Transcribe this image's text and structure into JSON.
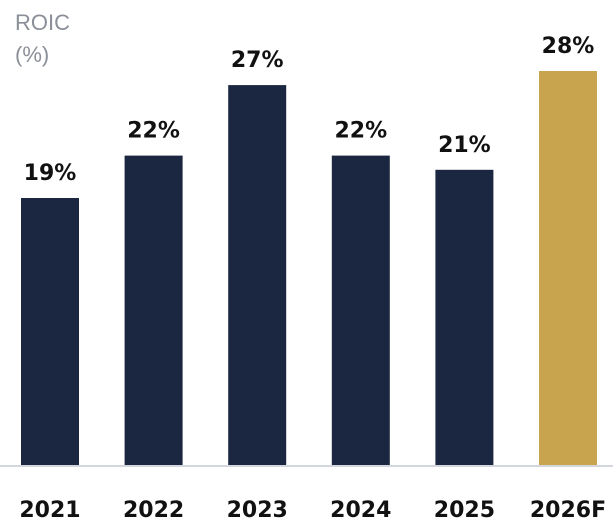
{
  "chart_data": {
    "type": "bar",
    "ylabel_line1": "ROIC",
    "ylabel_line2": "(%)",
    "categories": [
      "2021",
      "2022",
      "2023",
      "2024",
      "2025",
      "2026F"
    ],
    "values": [
      19,
      22,
      27,
      22,
      21,
      28
    ],
    "value_labels": [
      "19%",
      "22%",
      "27%",
      "22%",
      "21%",
      "28%"
    ],
    "forecast_index": 5,
    "ylim": [
      0,
      28
    ],
    "grid": false,
    "colors": {
      "actual": "#1b2740",
      "forecast": "#c9a44e",
      "baseline": "#d3d6dc",
      "axis_title": "#8a8f98",
      "labels": "#111111"
    }
  }
}
